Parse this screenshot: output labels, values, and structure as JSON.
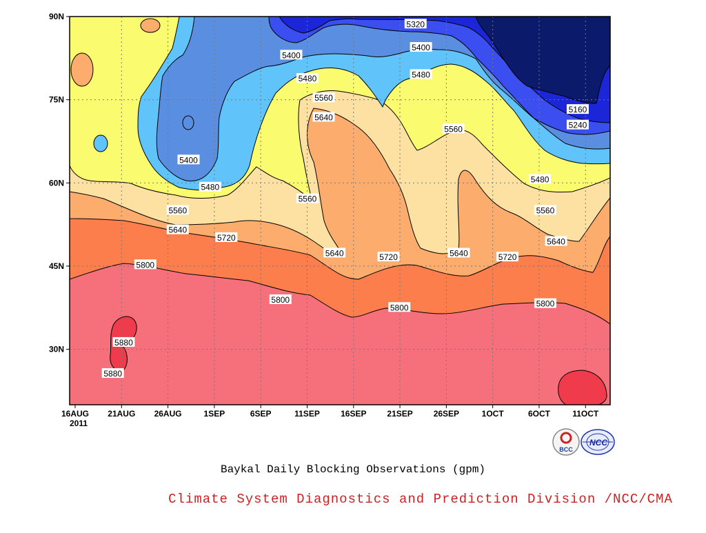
{
  "chart_data": {
    "type": "contour",
    "title": "Baykal Daily Blocking Observations (gpm)",
    "credit": "Climate System Diagnostics and Prediction Division /NCC/CMA",
    "credit_color": "#cc2222",
    "x_ticks": [
      "16AUG",
      "21AUG",
      "26AUG",
      "1SEP",
      "6SEP",
      "11SEP",
      "16SEP",
      "21SEP",
      "26SEP",
      "1OCT",
      "6OCT",
      "11OCT"
    ],
    "x_year": "2011",
    "y_ticks": [
      "30N",
      "45N",
      "60N",
      "75N",
      "90N"
    ],
    "ylim": [
      20,
      90
    ],
    "xlim": [
      "16AUG2011",
      "13OCT2011"
    ],
    "logos": [
      "BCC",
      "NCC"
    ],
    "levels": [
      5160,
      5240,
      5320,
      5400,
      5480,
      5560,
      5640,
      5720,
      5800,
      5880
    ],
    "fill_colors": {
      "below_5160": "#0b1a6b",
      "5160_5240": "#1a26d8",
      "5240_5320": "#3b4ef0",
      "5320_5400": "#5a8ee0",
      "5400_5480": "#60c4fb",
      "5480_5560": "#fbfb70",
      "5560_5640": "#fde1a3",
      "5640_5720": "#fcac6c",
      "5720_5800": "#fb7e4c",
      "5800_5880": "#f5707a",
      "above_5880": "#ef3b4b"
    },
    "contour_labels": [
      {
        "value": "5320",
        "x": 0.64,
        "y": 0.98
      },
      {
        "value": "5400",
        "x": 0.41,
        "y": 0.9
      },
      {
        "value": "5400",
        "x": 0.65,
        "y": 0.92
      },
      {
        "value": "5480",
        "x": 0.44,
        "y": 0.84
      },
      {
        "value": "5480",
        "x": 0.65,
        "y": 0.85
      },
      {
        "value": "5560",
        "x": 0.47,
        "y": 0.79
      },
      {
        "value": "5640",
        "x": 0.47,
        "y": 0.74
      },
      {
        "value": "5160",
        "x": 0.94,
        "y": 0.76
      },
      {
        "value": "5240",
        "x": 0.94,
        "y": 0.72
      },
      {
        "value": "5560",
        "x": 0.71,
        "y": 0.71
      },
      {
        "value": "5400",
        "x": 0.22,
        "y": 0.63
      },
      {
        "value": "5480",
        "x": 0.26,
        "y": 0.56
      },
      {
        "value": "5480",
        "x": 0.87,
        "y": 0.58
      },
      {
        "value": "5560",
        "x": 0.44,
        "y": 0.53
      },
      {
        "value": "5560",
        "x": 0.2,
        "y": 0.5
      },
      {
        "value": "5560",
        "x": 0.88,
        "y": 0.5
      },
      {
        "value": "5640",
        "x": 0.2,
        "y": 0.45
      },
      {
        "value": "5720",
        "x": 0.29,
        "y": 0.43
      },
      {
        "value": "5640",
        "x": 0.9,
        "y": 0.42
      },
      {
        "value": "5640",
        "x": 0.49,
        "y": 0.39
      },
      {
        "value": "5720",
        "x": 0.59,
        "y": 0.38
      },
      {
        "value": "5640",
        "x": 0.72,
        "y": 0.39
      },
      {
        "value": "5720",
        "x": 0.81,
        "y": 0.38
      },
      {
        "value": "5800",
        "x": 0.14,
        "y": 0.36
      },
      {
        "value": "5800",
        "x": 0.39,
        "y": 0.27
      },
      {
        "value": "5800",
        "x": 0.61,
        "y": 0.25
      },
      {
        "value": "5800",
        "x": 0.88,
        "y": 0.26
      },
      {
        "value": "5880",
        "x": 0.1,
        "y": 0.16
      },
      {
        "value": "5880",
        "x": 0.08,
        "y": 0.08
      }
    ]
  }
}
